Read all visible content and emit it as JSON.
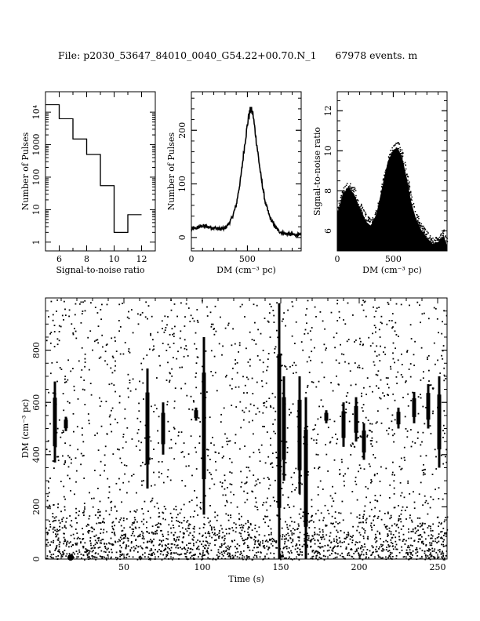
{
  "header": {
    "file_label": "File: p2030_53647_84010_0040_G54.22+00.70.N_1",
    "events_label": "67978 events. m"
  },
  "chart_data": [
    {
      "type": "bar",
      "name": "snr-histogram",
      "xlabel": "Signal-to-noise ratio",
      "ylabel": "Number of Pulses",
      "yscale": "log",
      "xlim": [
        5,
        13
      ],
      "ylim_log10": [
        -0.27,
        4.63
      ],
      "xticks": [
        "6",
        "8",
        "10",
        "12"
      ],
      "yticks": [
        "1",
        "10",
        "100",
        "1000",
        "10⁴"
      ],
      "bin_edges": [
        5,
        6,
        7,
        8,
        9,
        10,
        11,
        12
      ],
      "values": [
        17000,
        6300,
        1500,
        500,
        55,
        2,
        7
      ]
    },
    {
      "type": "line",
      "name": "dm-histogram",
      "xlabel": "DM (cm⁻³ pc)",
      "ylabel": "Number of Pulses",
      "xlim": [
        0,
        980
      ],
      "ylim": [
        -25,
        272
      ],
      "xticks": [
        "0",
        "500"
      ],
      "yticks": [
        "0",
        "100",
        "200"
      ],
      "x": [
        0,
        50,
        100,
        150,
        200,
        250,
        300,
        330,
        360,
        400,
        440,
        480,
        510,
        530,
        550,
        580,
        620,
        660,
        700,
        740,
        780,
        820,
        880,
        940,
        980
      ],
      "y": [
        15,
        18,
        22,
        20,
        18,
        16,
        17,
        25,
        35,
        60,
        110,
        180,
        225,
        240,
        230,
        180,
        115,
        65,
        38,
        22,
        12,
        8,
        6,
        5,
        4
      ]
    },
    {
      "type": "scatter",
      "name": "snr-vs-dm",
      "xlabel": "DM (cm⁻³ pc)",
      "ylabel": "Signal-to-noise ratio",
      "xlim": [
        0,
        980
      ],
      "ylim": [
        5,
        12.95
      ],
      "xticks": [
        "0",
        "500"
      ],
      "yticks": [
        "6",
        "8",
        "10",
        "12"
      ],
      "envelope_dm": [
        0,
        50,
        100,
        150,
        200,
        260,
        300,
        350,
        400,
        450,
        500,
        540,
        580,
        620,
        660,
        700,
        750,
        800,
        850,
        900,
        950,
        980
      ],
      "envelope_max_snr": [
        7.0,
        8.0,
        8.3,
        8.0,
        7.3,
        6.6,
        6.4,
        7.0,
        8.3,
        9.6,
        10.2,
        10.3,
        9.8,
        8.8,
        7.6,
        6.8,
        6.2,
        5.8,
        5.5,
        5.6,
        5.9,
        5.4
      ]
    },
    {
      "type": "scatter",
      "name": "dm-vs-time",
      "xlabel": "Time (s)",
      "ylabel": "DM (cm⁻³ pc)",
      "xlim": [
        0,
        256
      ],
      "ylim": [
        0,
        1000
      ],
      "xticks": [
        "50",
        "100",
        "150",
        "200",
        "250"
      ],
      "yticks": [
        "0",
        "200",
        "400",
        "600",
        "800"
      ],
      "bursts": [
        {
          "t": 6,
          "dm": [
            370,
            680
          ]
        },
        {
          "t": 13,
          "dm": [
            490,
            545
          ]
        },
        {
          "t": 65,
          "dm": [
            270,
            730
          ]
        },
        {
          "t": 75,
          "dm": [
            400,
            600
          ]
        },
        {
          "t": 96,
          "dm": [
            530,
            580
          ]
        },
        {
          "t": 101,
          "dm": [
            170,
            850
          ]
        },
        {
          "t": 149,
          "dm": [
            0,
            980
          ]
        },
        {
          "t": 152,
          "dm": [
            300,
            700
          ]
        },
        {
          "t": 162,
          "dm": [
            250,
            700
          ]
        },
        {
          "t": 166,
          "dm": [
            0,
            620
          ]
        },
        {
          "t": 179,
          "dm": [
            520,
            570
          ]
        },
        {
          "t": 190,
          "dm": [
            430,
            600
          ]
        },
        {
          "t": 198,
          "dm": [
            450,
            620
          ]
        },
        {
          "t": 203,
          "dm": [
            380,
            520
          ]
        },
        {
          "t": 225,
          "dm": [
            500,
            580
          ]
        },
        {
          "t": 235,
          "dm": [
            520,
            640
          ]
        },
        {
          "t": 244,
          "dm": [
            500,
            670
          ]
        },
        {
          "t": 251,
          "dm": [
            350,
            700
          ]
        }
      ]
    }
  ]
}
